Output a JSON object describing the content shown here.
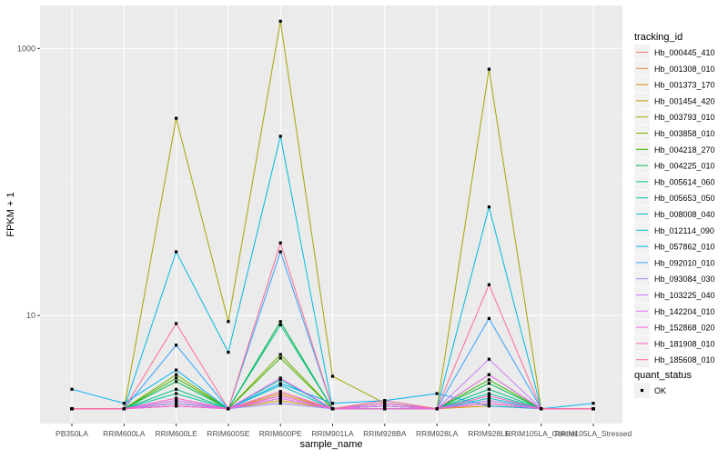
{
  "chart_data": {
    "type": "line",
    "xlabel": "sample_name",
    "ylabel": "FPKM + 1",
    "yscale": "log10",
    "ylim": [
      1.55,
      2100
    ],
    "yticks": [
      10,
      1000
    ],
    "ytick_labels": [
      "10",
      "1000"
    ],
    "categories": [
      "PB350LA",
      "RRIM600LA",
      "RRIM600LE",
      "RRIM600SE",
      "RRIM600PE",
      "RRIM901LA",
      "RRIM928BA",
      "RRIM928LA",
      "RRIM928LE",
      "RRIM105LA_Control",
      "RRIM105LA_Stressed"
    ],
    "series": [
      {
        "name": "Hb_000445_410",
        "color": "#F8766D",
        "values": [
          2,
          2,
          2.1,
          2,
          2.4,
          2,
          2.2,
          2,
          2.3,
          2,
          2
        ]
      },
      {
        "name": "Hb_001308_010",
        "color": "#EA8331",
        "values": [
          2,
          2,
          2.2,
          2,
          2.5,
          2,
          2,
          2,
          2.2,
          2,
          2
        ]
      },
      {
        "name": "Hb_001373_170",
        "color": "#D89000",
        "values": [
          2,
          2,
          2.1,
          2,
          2.3,
          2,
          2,
          2,
          2.1,
          2,
          2
        ]
      },
      {
        "name": "Hb_001454_420",
        "color": "#C09B00",
        "values": [
          2,
          2,
          2.2,
          2,
          2.6,
          2,
          2.1,
          2,
          2.2,
          2,
          2
        ]
      },
      {
        "name": "Hb_003793_010",
        "color": "#A3A500",
        "values": [
          2,
          2,
          300,
          9,
          1600,
          3.5,
          2.2,
          2,
          700,
          2,
          2
        ]
      },
      {
        "name": "Hb_003858_010",
        "color": "#7CAE00",
        "values": [
          2,
          2,
          3.6,
          2,
          5.1,
          2,
          2,
          2,
          3.6,
          2,
          2
        ]
      },
      {
        "name": "Hb_004218_270",
        "color": "#39B600",
        "values": [
          2,
          2,
          3.4,
          2,
          4.8,
          2,
          2.1,
          2,
          3.3,
          2,
          2
        ]
      },
      {
        "name": "Hb_004225_010",
        "color": "#00BB4E",
        "values": [
          2,
          2,
          3.2,
          2,
          9,
          2,
          2,
          2,
          3.1,
          2,
          2
        ]
      },
      {
        "name": "Hb_005614_060",
        "color": "#00BF7D",
        "values": [
          2,
          2,
          2.8,
          2,
          8.5,
          2,
          2.1,
          2,
          2.8,
          2,
          2
        ]
      },
      {
        "name": "Hb_005653_050",
        "color": "#00C1A3",
        "values": [
          2,
          2,
          2.6,
          2,
          3.3,
          2,
          2.2,
          2,
          2.6,
          2,
          2
        ]
      },
      {
        "name": "Hb_008008_040",
        "color": "#00BFC4",
        "values": [
          2,
          2,
          2.3,
          2,
          3,
          2,
          2.1,
          2,
          2.4,
          2,
          2
        ]
      },
      {
        "name": "Hb_012114_090",
        "color": "#00BAE0",
        "values": [
          2,
          2,
          30,
          5.3,
          220,
          2,
          2.3,
          2,
          65,
          2,
          2
        ]
      },
      {
        "name": "Hb_057862_010",
        "color": "#00B0F6",
        "values": [
          2.8,
          2.2,
          3.9,
          2,
          3.1,
          2.2,
          2.3,
          2.6,
          2.1,
          2,
          2.2
        ]
      },
      {
        "name": "Hb_092010_010",
        "color": "#35A2FF",
        "values": [
          2,
          2,
          6,
          2,
          30,
          2,
          2.2,
          2,
          9.5,
          2,
          2
        ]
      },
      {
        "name": "Hb_093084_030",
        "color": "#9590FF",
        "values": [
          2,
          2,
          2.2,
          2,
          2.2,
          2,
          2.1,
          2,
          2.3,
          2,
          2
        ]
      },
      {
        "name": "Hb_103225_040",
        "color": "#C77CFF",
        "values": [
          2,
          2,
          2.1,
          2,
          2.4,
          2,
          2,
          2,
          4.7,
          2,
          2
        ]
      },
      {
        "name": "Hb_142204_010",
        "color": "#E76BF3",
        "values": [
          2,
          2,
          2.3,
          2,
          3.4,
          2,
          2.1,
          2,
          3.6,
          2,
          2
        ]
      },
      {
        "name": "Hb_152868_020",
        "color": "#FA62DB",
        "values": [
          2,
          2,
          2.1,
          2,
          2.5,
          2,
          2,
          2,
          2.2,
          2,
          2
        ]
      },
      {
        "name": "Hb_181908_010",
        "color": "#FF62BC",
        "values": [
          2,
          2,
          2.4,
          2,
          2.7,
          2,
          2.2,
          2,
          2.5,
          2,
          2
        ]
      },
      {
        "name": "Hb_185608_010",
        "color": "#FF6C91",
        "values": [
          2,
          2,
          8.7,
          2,
          35,
          2,
          2.3,
          2,
          17,
          2,
          2
        ]
      }
    ],
    "legend_title": "tracking_id",
    "legend_position": "right",
    "shape_legend": {
      "title": "quant_status",
      "items": [
        {
          "label": "OK"
        }
      ]
    }
  }
}
